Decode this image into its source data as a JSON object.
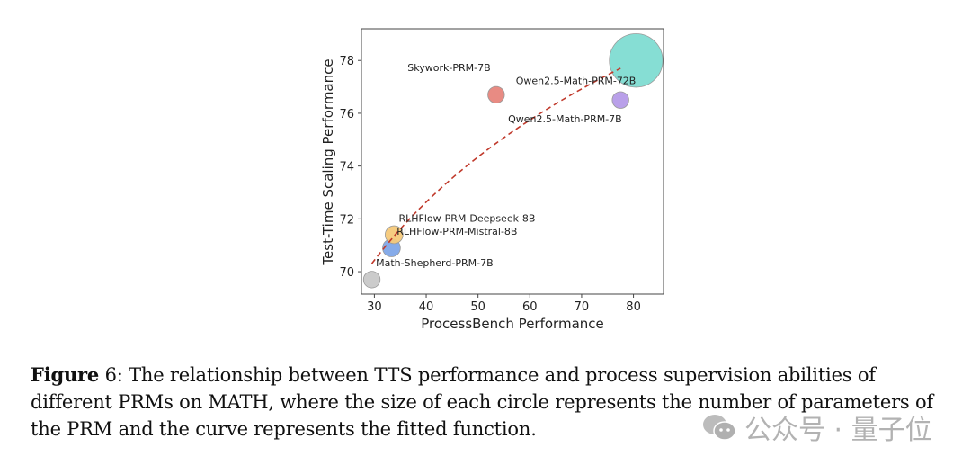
{
  "chart_data": {
    "type": "scatter",
    "xlabel": "ProcessBench Performance",
    "ylabel": "Test-Time Scaling Performance",
    "xlim": [
      27.5,
      85.8
    ],
    "ylim": [
      69.15,
      79.2
    ],
    "xticks": [
      30,
      40,
      50,
      60,
      70,
      80
    ],
    "yticks": [
      70,
      72,
      74,
      76,
      78
    ],
    "grid": false,
    "points": [
      {
        "name": "Math-Shepherd-PRM-7B",
        "x": 29.5,
        "y": 69.7,
        "size": 7,
        "color": "#c8c8c8",
        "label_x": 30.3,
        "label_y": 70.2
      },
      {
        "name": "RLHFlow-PRM-Mistral-8B",
        "x": 33.3,
        "y": 70.9,
        "size": 8,
        "color": "#7fa6e8",
        "label_x": 34.3,
        "label_y": 71.4
      },
      {
        "name": "RLHFlow-PRM-Deepseek-8B",
        "x": 33.8,
        "y": 71.4,
        "size": 8,
        "color": "#f5c97a",
        "label_x": 34.7,
        "label_y": 71.9
      },
      {
        "name": "Skywork-PRM-7B",
        "x": 53.5,
        "y": 76.7,
        "size": 7,
        "color": "#e7857c",
        "label_x": 36.4,
        "label_y": 77.6
      },
      {
        "name": "Qwen2.5-Math-PRM-7B",
        "x": 77.5,
        "y": 76.5,
        "size": 7,
        "color": "#b59be8",
        "label_x": 55.8,
        "label_y": 75.65
      },
      {
        "name": "Qwen2.5-Math-PRM-72B",
        "x": 80.5,
        "y": 78.0,
        "size": 72,
        "color": "#7fdcd2",
        "label_x": 57.3,
        "label_y": 77.1
      }
    ],
    "fit": {
      "type": "log",
      "a": 44.38,
      "b": 7.66,
      "x_range": [
        29.5,
        77.5
      ],
      "color": "#c0392b",
      "style": "dashed"
    }
  },
  "caption": {
    "label": "Figure",
    "number": "6",
    "text": ": The relationship between TTS performance and process supervision abilities of different PRMs on MATH, where the size of each circle represents the number of parameters of the PRM and the curve represents the fitted function."
  },
  "watermark": {
    "text": "公众号 · 量子位"
  }
}
